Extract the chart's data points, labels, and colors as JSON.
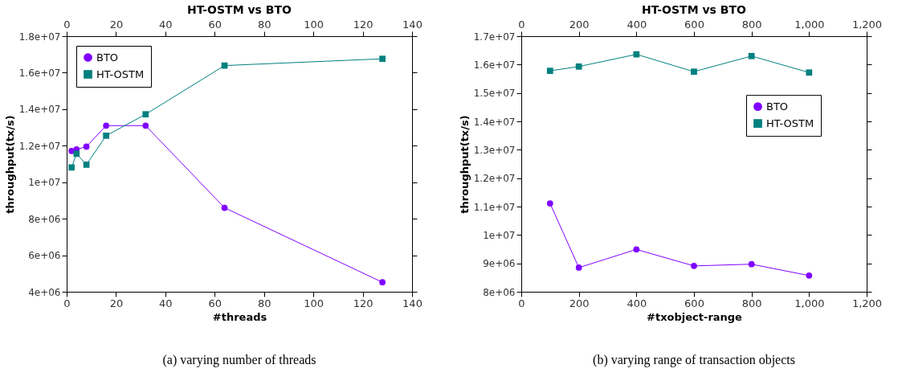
{
  "chart_data": [
    {
      "type": "line",
      "title": "HT-OSTM vs BTO",
      "xlabel": "#threads",
      "ylabel": "throughput(tx/s)",
      "x": [
        2,
        4,
        8,
        16,
        32,
        64,
        128
      ],
      "series": [
        {
          "name": "BTO",
          "color": "#8000ff",
          "marker": "circle",
          "values": [
            11710000,
            11800000,
            11950000,
            13100000,
            13100000,
            8600000,
            4520000
          ]
        },
        {
          "name": "HT-OSTM",
          "color": "#008080",
          "marker": "square",
          "values": [
            10810000,
            11560000,
            10960000,
            12550000,
            13720000,
            16390000,
            16760000
          ]
        }
      ],
      "xlim": [
        0,
        140
      ],
      "xticks": [
        0,
        20,
        40,
        60,
        80,
        100,
        120,
        140
      ],
      "x2lim": [
        0,
        140
      ],
      "x2ticks": [
        0,
        20,
        40,
        60,
        80,
        100,
        120,
        140
      ],
      "ylim": [
        4000000,
        18000000
      ],
      "yticks": [
        {
          "value": 4000000,
          "label": "4e+06"
        },
        {
          "value": 6000000,
          "label": "6e+06"
        },
        {
          "value": 8000000,
          "label": "8e+06"
        },
        {
          "value": 10000000,
          "label": "1e+07"
        },
        {
          "value": 12000000,
          "label": "1.2e+07"
        },
        {
          "value": 14000000,
          "label": "1.4e+07"
        },
        {
          "value": 16000000,
          "label": "1.6e+07"
        },
        {
          "value": 18000000,
          "label": "1.8e+07"
        }
      ],
      "legend": "top left",
      "grid": false,
      "line_style": "solid",
      "annotations": [
        "(a) varying number of threads"
      ]
    },
    {
      "type": "line",
      "title": "HT-OSTM vs BTO",
      "xlabel": "#txobject-range",
      "ylabel": "throughput(tx/s)",
      "x": [
        100,
        200,
        400,
        600,
        800,
        1000
      ],
      "series": [
        {
          "name": "BTO",
          "color": "#8000ff",
          "marker": "circle",
          "values": [
            11110000,
            8850000,
            9490000,
            8910000,
            8970000,
            8570000
          ]
        },
        {
          "name": "HT-OSTM",
          "color": "#008080",
          "marker": "square",
          "values": [
            15780000,
            15930000,
            16360000,
            15750000,
            16300000,
            15720000
          ]
        }
      ],
      "xlim": [
        0,
        1200
      ],
      "xticks": [
        0,
        200,
        400,
        600,
        800,
        {
          "value": 1000,
          "label": "1,000"
        },
        {
          "value": 1200,
          "label": "1,200"
        }
      ],
      "x2lim": [
        0,
        1200
      ],
      "x2ticks": [
        0,
        200,
        400,
        600,
        800,
        {
          "value": 1000,
          "label": "1,000"
        },
        {
          "value": 1200,
          "label": "1,200"
        }
      ],
      "ylim": [
        8000000,
        17000000
      ],
      "yticks": [
        {
          "value": 8000000,
          "label": "8e+06"
        },
        {
          "value": 9000000,
          "label": "9e+06"
        },
        {
          "value": 10000000,
          "label": "1e+07"
        },
        {
          "value": 11000000,
          "label": "1.1e+07"
        },
        {
          "value": 12000000,
          "label": "1.2e+07"
        },
        {
          "value": 13000000,
          "label": "1.3e+07"
        },
        {
          "value": 14000000,
          "label": "1.4e+07"
        },
        {
          "value": 15000000,
          "label": "1.5e+07"
        },
        {
          "value": 16000000,
          "label": "1.6e+07"
        },
        {
          "value": 17000000,
          "label": "1.7e+07"
        }
      ],
      "legend": "right",
      "grid": false,
      "line_style": "solid",
      "annotations": [
        "(b) varying range of transaction objects"
      ]
    }
  ]
}
